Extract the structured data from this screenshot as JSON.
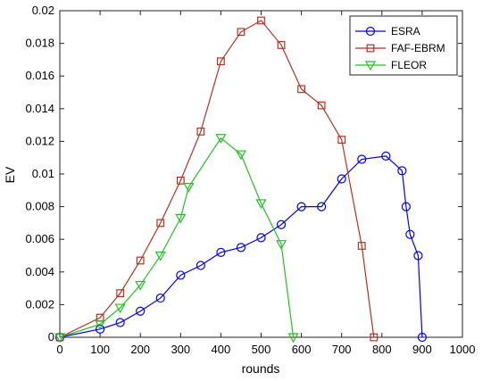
{
  "chart_data": {
    "type": "line",
    "xlabel": "rounds",
    "ylabel": "EV",
    "xlim": [
      0,
      1000
    ],
    "ylim": [
      0,
      0.02
    ],
    "xticks": [
      "0",
      "100",
      "200",
      "300",
      "400",
      "500",
      "600",
      "700",
      "800",
      "900",
      "1000"
    ],
    "yticks": [
      "0",
      "0.002",
      "0.004",
      "0.006",
      "0.008",
      "0.01",
      "0.012",
      "0.014",
      "0.016",
      "0.018",
      "0.02"
    ],
    "grid": false,
    "legend_position": "top-right",
    "series": [
      {
        "name": "ESRA",
        "color": "#0000ff",
        "marker": "circle",
        "x": [
          0,
          100,
          150,
          200,
          250,
          300,
          350,
          400,
          450,
          500,
          550,
          600,
          650,
          700,
          750,
          810,
          850,
          860,
          870,
          890,
          900
        ],
        "y": [
          0,
          0.0005,
          0.0009,
          0.0016,
          0.0024,
          0.0038,
          0.0044,
          0.0052,
          0.0055,
          0.0061,
          0.0069,
          0.008,
          0.008,
          0.0097,
          0.0109,
          0.0111,
          0.0102,
          0.008,
          0.0063,
          0.005,
          0
        ]
      },
      {
        "name": "FAF-EBRM",
        "color": "#b5321c",
        "marker": "square",
        "x": [
          0,
          100,
          150,
          200,
          250,
          300,
          350,
          400,
          450,
          500,
          550,
          600,
          650,
          700,
          750,
          780
        ],
        "y": [
          0,
          0.0012,
          0.0027,
          0.0047,
          0.007,
          0.0096,
          0.0126,
          0.0169,
          0.0187,
          0.0194,
          0.0179,
          0.0152,
          0.0142,
          0.0121,
          0.0056,
          0
        ]
      },
      {
        "name": "FLEOR",
        "color": "#22c022",
        "marker": "triangle-down",
        "x": [
          0,
          100,
          150,
          200,
          250,
          300,
          320,
          400,
          450,
          500,
          550,
          580
        ],
        "y": [
          0,
          0.0008,
          0.0018,
          0.0032,
          0.005,
          0.0073,
          0.0092,
          0.0122,
          0.0112,
          0.0082,
          0.0057,
          0
        ]
      }
    ]
  }
}
